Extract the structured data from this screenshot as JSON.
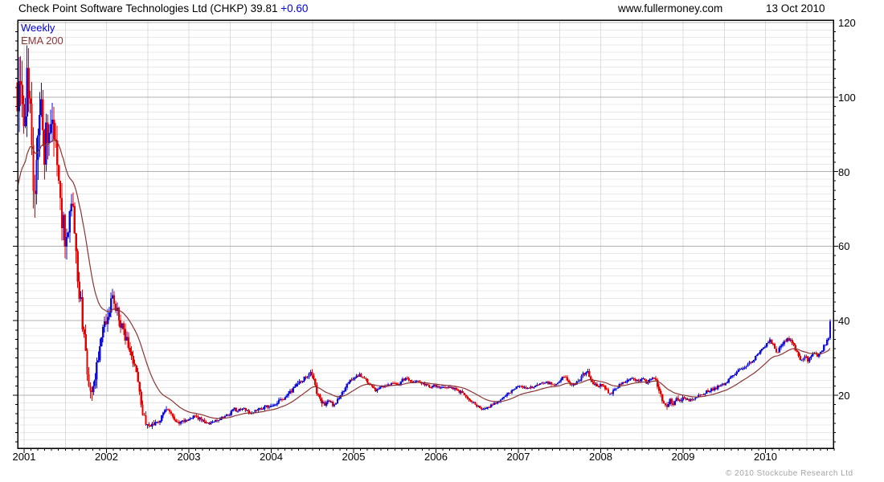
{
  "header": {
    "instrument": "Check Point Software Technologies Ltd (CHKP)",
    "price": "39.81",
    "change": "+0.60",
    "site": "www.fullermoney.com",
    "date": "13 Oct 2010"
  },
  "legend": {
    "series1": "Weekly",
    "series2": "EMA 200"
  },
  "footer": {
    "copyright": "© 2010 Stockcube Research Ltd"
  },
  "chart_data": {
    "type": "candlestick",
    "title": "Check Point Software Technologies Ltd (CHKP)",
    "last_price": 39.81,
    "change": 0.6,
    "frequency": "weekly",
    "x_axis": {
      "ticks": [
        2001,
        2002,
        2003,
        2004,
        2005,
        2006,
        2007,
        2008,
        2009,
        2010
      ],
      "range": [
        2000.92,
        2010.86
      ],
      "grid_interval_years": 0.5,
      "minor_tick": "monthly"
    },
    "y_axis": {
      "ticks": [
        120,
        100,
        80,
        60,
        40,
        20
      ],
      "range": [
        5.8,
        120.65
      ],
      "side": "right",
      "grid_minor": 2,
      "grid_major": 20,
      "minor_tick": 2.5
    },
    "colors": {
      "up": "#1010d8",
      "down": "#e80000",
      "ema": "#8b3434",
      "grid_minor": "#e8e8e8",
      "grid_major": "#b0b0b0",
      "grid_vert": "#dcdcdc",
      "frame": "#000000",
      "accent_blue": "#0000d8"
    },
    "series": [
      {
        "name": "Weekly",
        "style": "candlestick",
        "close_anchors": [
          [
            2000.92,
            95
          ],
          [
            2000.96,
            103
          ],
          [
            2001.0,
            88
          ],
          [
            2001.04,
            105
          ],
          [
            2001.08,
            97
          ],
          [
            2001.12,
            74
          ],
          [
            2001.16,
            90
          ],
          [
            2001.2,
            100
          ],
          [
            2001.24,
            82
          ],
          [
            2001.27,
            94
          ],
          [
            2001.31,
            86
          ],
          [
            2001.35,
            96
          ],
          [
            2001.38,
            85
          ],
          [
            2001.42,
            76
          ],
          [
            2001.46,
            68
          ],
          [
            2001.5,
            62
          ],
          [
            2001.54,
            67
          ],
          [
            2001.58,
            72
          ],
          [
            2001.62,
            60
          ],
          [
            2001.66,
            50
          ],
          [
            2001.7,
            42
          ],
          [
            2001.74,
            33
          ],
          [
            2001.78,
            25
          ],
          [
            2001.81,
            21
          ],
          [
            2001.84,
            24
          ],
          [
            2001.88,
            28
          ],
          [
            2001.92,
            33
          ],
          [
            2001.96,
            38
          ],
          [
            2002.0,
            41
          ],
          [
            2002.04,
            44
          ],
          [
            2002.08,
            46
          ],
          [
            2002.12,
            43
          ],
          [
            2002.16,
            40
          ],
          [
            2002.2,
            37.5
          ],
          [
            2002.24,
            35
          ],
          [
            2002.28,
            32
          ],
          [
            2002.32,
            29
          ],
          [
            2002.36,
            26
          ],
          [
            2002.4,
            21
          ],
          [
            2002.44,
            15.5
          ],
          [
            2002.48,
            12.5
          ],
          [
            2002.52,
            11.5
          ],
          [
            2002.56,
            13
          ],
          [
            2002.6,
            12.2
          ],
          [
            2002.64,
            13.5
          ],
          [
            2002.68,
            14.8
          ],
          [
            2002.73,
            15.8
          ],
          [
            2002.78,
            14.8
          ],
          [
            2002.83,
            13.5
          ],
          [
            2002.88,
            12.8
          ],
          [
            2002.93,
            13.4
          ],
          [
            2003.0,
            13.6
          ],
          [
            2003.08,
            14.3
          ],
          [
            2003.16,
            13.3
          ],
          [
            2003.25,
            12.4
          ],
          [
            2003.33,
            13.3
          ],
          [
            2003.42,
            14.3
          ],
          [
            2003.5,
            15.0
          ],
          [
            2003.54,
            16.6
          ],
          [
            2003.58,
            15.8
          ],
          [
            2003.67,
            16.2
          ],
          [
            2003.75,
            15.2
          ],
          [
            2003.83,
            16.2
          ],
          [
            2003.92,
            16.8
          ],
          [
            2004.0,
            17.2
          ],
          [
            2004.08,
            18.2
          ],
          [
            2004.17,
            19.6
          ],
          [
            2004.25,
            21.2
          ],
          [
            2004.33,
            23.0
          ],
          [
            2004.42,
            25.0
          ],
          [
            2004.48,
            26.2
          ],
          [
            2004.52,
            24.0
          ],
          [
            2004.56,
            20.5
          ],
          [
            2004.6,
            18.3
          ],
          [
            2004.65,
            17.5
          ],
          [
            2004.7,
            18.5
          ],
          [
            2004.75,
            17.2
          ],
          [
            2004.8,
            18.8
          ],
          [
            2004.85,
            20.5
          ],
          [
            2004.9,
            22.0
          ],
          [
            2004.96,
            23.8
          ],
          [
            2005.02,
            24.8
          ],
          [
            2005.08,
            25.6
          ],
          [
            2005.14,
            24.6
          ],
          [
            2005.2,
            22.8
          ],
          [
            2005.26,
            21.3
          ],
          [
            2005.33,
            22.0
          ],
          [
            2005.4,
            22.8
          ],
          [
            2005.47,
            23.3
          ],
          [
            2005.54,
            22.6
          ],
          [
            2005.6,
            24.3
          ],
          [
            2005.66,
            24.6
          ],
          [
            2005.72,
            23.4
          ],
          [
            2005.79,
            23.8
          ],
          [
            2005.86,
            23.0
          ],
          [
            2005.93,
            22.4
          ],
          [
            2006.0,
            22.6
          ],
          [
            2006.08,
            21.8
          ],
          [
            2006.16,
            22.4
          ],
          [
            2006.24,
            21.6
          ],
          [
            2006.32,
            20.6
          ],
          [
            2006.4,
            19.0
          ],
          [
            2006.48,
            17.6
          ],
          [
            2006.56,
            16.4
          ],
          [
            2006.62,
            16.8
          ],
          [
            2006.7,
            17.6
          ],
          [
            2006.78,
            18.6
          ],
          [
            2006.86,
            20.2
          ],
          [
            2006.94,
            21.6
          ],
          [
            2007.02,
            22.6
          ],
          [
            2007.1,
            21.8
          ],
          [
            2007.18,
            22.3
          ],
          [
            2007.26,
            23.0
          ],
          [
            2007.34,
            23.5
          ],
          [
            2007.42,
            22.8
          ],
          [
            2007.5,
            23.4
          ],
          [
            2007.55,
            25.2
          ],
          [
            2007.6,
            23.8
          ],
          [
            2007.66,
            22.6
          ],
          [
            2007.72,
            23.6
          ],
          [
            2007.78,
            25.4
          ],
          [
            2007.84,
            26.4
          ],
          [
            2007.88,
            24.6
          ],
          [
            2007.92,
            22.8
          ],
          [
            2007.96,
            22.4
          ],
          [
            2008.0,
            22.9
          ],
          [
            2008.06,
            21.6
          ],
          [
            2008.12,
            20.2
          ],
          [
            2008.18,
            21.8
          ],
          [
            2008.24,
            22.8
          ],
          [
            2008.31,
            23.8
          ],
          [
            2008.38,
            24.6
          ],
          [
            2008.44,
            24.0
          ],
          [
            2008.5,
            24.4
          ],
          [
            2008.55,
            23.4
          ],
          [
            2008.6,
            24.4
          ],
          [
            2008.64,
            25.2
          ],
          [
            2008.68,
            23.0
          ],
          [
            2008.72,
            20.6
          ],
          [
            2008.76,
            18.0
          ],
          [
            2008.8,
            17.0
          ],
          [
            2008.84,
            18.8
          ],
          [
            2008.88,
            17.6
          ],
          [
            2008.92,
            19.0
          ],
          [
            2008.96,
            18.4
          ],
          [
            2009.0,
            19.4
          ],
          [
            2009.06,
            18.6
          ],
          [
            2009.12,
            19.0
          ],
          [
            2009.18,
            19.8
          ],
          [
            2009.25,
            20.6
          ],
          [
            2009.32,
            21.4
          ],
          [
            2009.4,
            22.0
          ],
          [
            2009.48,
            22.8
          ],
          [
            2009.56,
            24.2
          ],
          [
            2009.64,
            26.2
          ],
          [
            2009.72,
            27.4
          ],
          [
            2009.8,
            28.6
          ],
          [
            2009.88,
            30.2
          ],
          [
            2009.96,
            32.4
          ],
          [
            2010.02,
            33.8
          ],
          [
            2010.06,
            34.6
          ],
          [
            2010.1,
            33.2
          ],
          [
            2010.14,
            31.6
          ],
          [
            2010.18,
            32.8
          ],
          [
            2010.23,
            34.2
          ],
          [
            2010.28,
            35.2
          ],
          [
            2010.33,
            33.8
          ],
          [
            2010.38,
            31.4
          ],
          [
            2010.43,
            29.6
          ],
          [
            2010.48,
            30.4
          ],
          [
            2010.52,
            29.2
          ],
          [
            2010.56,
            30.6
          ],
          [
            2010.6,
            31.6
          ],
          [
            2010.64,
            30.4
          ],
          [
            2010.68,
            31.8
          ],
          [
            2010.72,
            33.6
          ],
          [
            2010.75,
            34.8
          ],
          [
            2010.77,
            35.4
          ],
          [
            2010.79,
            39.81
          ]
        ],
        "volatility_anchors": [
          [
            2000.92,
            14
          ],
          [
            2001.15,
            13
          ],
          [
            2001.35,
            10
          ],
          [
            2001.6,
            7
          ],
          [
            2001.75,
            6
          ],
          [
            2001.95,
            4.5
          ],
          [
            2002.1,
            4
          ],
          [
            2002.3,
            3
          ],
          [
            2002.5,
            2.2
          ],
          [
            2002.7,
            1.8
          ],
          [
            2003.0,
            1.1
          ],
          [
            2003.5,
            0.9
          ],
          [
            2004.0,
            1.1
          ],
          [
            2004.4,
            1.6
          ],
          [
            2004.6,
            1.8
          ],
          [
            2004.9,
            1.3
          ],
          [
            2005.2,
            1.0
          ],
          [
            2005.8,
            0.9
          ],
          [
            2006.4,
            1.0
          ],
          [
            2006.9,
            0.9
          ],
          [
            2007.5,
            0.9
          ],
          [
            2007.85,
            1.5
          ],
          [
            2008.2,
            1.1
          ],
          [
            2008.6,
            1.2
          ],
          [
            2008.78,
            2.0
          ],
          [
            2009.1,
            1.0
          ],
          [
            2009.6,
            1.0
          ],
          [
            2010.05,
            1.2
          ],
          [
            2010.4,
            1.3
          ],
          [
            2010.7,
            1.1
          ],
          [
            2010.79,
            1.3
          ]
        ]
      },
      {
        "name": "EMA 200",
        "style": "line",
        "ema_alpha": 0.074,
        "ema_seed": 74
      }
    ]
  }
}
